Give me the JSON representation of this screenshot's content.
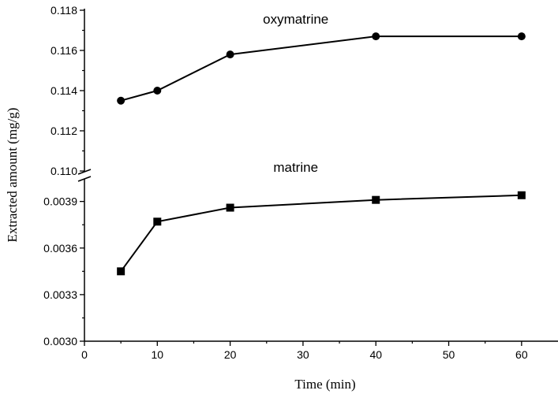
{
  "chart_data": {
    "type": "line",
    "xlabel": "Time (min)",
    "ylabel": "Extracted amount (mg/g)",
    "xlim": [
      0,
      65
    ],
    "x_ticks": [
      "0",
      "10",
      "20",
      "30",
      "40",
      "50",
      "60"
    ],
    "y_axis_break": true,
    "upper_panel": {
      "ylim": [
        0.11,
        0.118
      ],
      "y_ticks": [
        "0.110",
        "0.112",
        "0.114",
        "0.116",
        "0.118"
      ]
    },
    "lower_panel": {
      "ylim": [
        0.003,
        0.00402
      ],
      "y_ticks": [
        "0.0030",
        "0.0033",
        "0.0036",
        "0.0039"
      ]
    },
    "series": [
      {
        "name": "oxymatrine",
        "panel": "upper",
        "marker": "circle",
        "x": [
          5,
          10,
          20,
          40,
          60
        ],
        "y": [
          0.1135,
          0.114,
          0.1158,
          0.1167,
          0.1167
        ]
      },
      {
        "name": "matrine",
        "panel": "lower",
        "marker": "square",
        "x": [
          5,
          10,
          20,
          40,
          60
        ],
        "y": [
          0.00345,
          0.00377,
          0.00386,
          0.00391,
          0.00394
        ]
      }
    ],
    "grid": false,
    "legend": "none"
  }
}
